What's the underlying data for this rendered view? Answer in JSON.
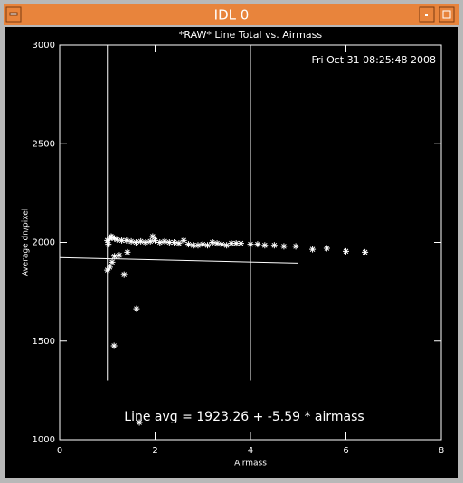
{
  "window_title": "IDL 0",
  "chart_data": {
    "type": "scatter",
    "title": "*RAW* Line Total vs. Airmass",
    "timestamp": "Fri Oct 31 08:25:48 2008",
    "x_label": "Airmass",
    "y_label": "Average dn/pixel",
    "annotation": "Line avg = 1923.26 + -5.59 * airmass",
    "xlim": [
      0,
      8
    ],
    "xticks": [
      0,
      2,
      4,
      6,
      8
    ],
    "ylim": [
      1000,
      3000
    ],
    "yticks": [
      1000,
      1500,
      2000,
      2500,
      3000
    ],
    "color": "#ffffff",
    "x": [
      1.0,
      1.02,
      1.05,
      1.08,
      1.1,
      1.15,
      1.2,
      1.3,
      1.4,
      1.5,
      1.6,
      1.7,
      1.8,
      1.9,
      1.95,
      2.0,
      2.1,
      2.2,
      2.3,
      2.4,
      2.5,
      2.6,
      2.7,
      2.8,
      2.9,
      3.0,
      3.1,
      3.2,
      3.3,
      3.4,
      3.5,
      3.6,
      3.7,
      3.8,
      4.0,
      4.15,
      4.3,
      4.5,
      4.7,
      4.95,
      5.3,
      5.6,
      6.0,
      6.4,
      1.0,
      1.05,
      1.1,
      1.15,
      1.25,
      1.35,
      1.42,
      1.61,
      1.14,
      1.67
    ],
    "values": [
      2010,
      1990,
      2020,
      2030,
      2025,
      2020,
      2015,
      2010,
      2010,
      2005,
      2000,
      2005,
      2000,
      2005,
      2030,
      2010,
      2000,
      2005,
      2000,
      2000,
      1995,
      2010,
      1990,
      1985,
      1985,
      1990,
      1985,
      2000,
      1995,
      1990,
      1985,
      1995,
      1995,
      1995,
      1990,
      1990,
      1985,
      1985,
      1980,
      1980,
      1965,
      1970,
      1955,
      1950,
      1860,
      1875,
      1900,
      1930,
      1935,
      1837,
      1950,
      1663,
      1476,
      1087
    ],
    "fit_line": {
      "x": [
        0,
        5
      ],
      "values": [
        1923.26,
        1895.31
      ]
    },
    "vlines": [
      1,
      4
    ],
    "vline_ymin": 1300
  }
}
